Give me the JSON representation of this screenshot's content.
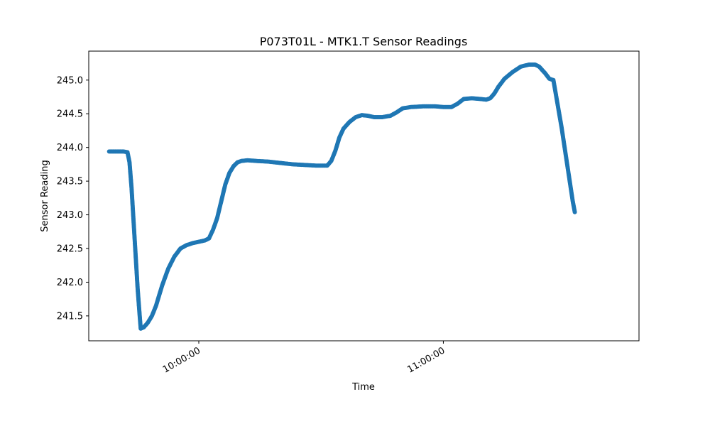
{
  "chart_data": {
    "type": "scatter",
    "title": "P073T01L - MTK1.T Sensor Readings",
    "xlabel": "Time",
    "ylabel": "Sensor Reading",
    "xlim": [
      "09:33:00",
      "11:48:00"
    ],
    "ylim": [
      241.13,
      245.43
    ],
    "x_ticks": [
      "10:00:00",
      "11:00:00"
    ],
    "y_ticks": [
      241.5,
      242.0,
      242.5,
      243.0,
      243.5,
      244.0,
      244.5,
      245.0
    ],
    "y_tick_labels": [
      "241.5",
      "242.0",
      "242.5",
      "243.0",
      "243.5",
      "244.0",
      "244.5",
      "245.0"
    ],
    "grid": false,
    "color": "#1f77b4",
    "series": [
      {
        "points": [
          [
            "09:38:00",
            243.94
          ],
          [
            "09:40:00",
            243.94
          ],
          [
            "09:41:30",
            243.94
          ],
          [
            "09:42:30",
            243.93
          ],
          [
            "09:43:00",
            243.78
          ],
          [
            "09:43:30",
            243.4
          ],
          [
            "09:44:00",
            242.9
          ],
          [
            "09:44:30",
            242.4
          ],
          [
            "09:45:00",
            241.9
          ],
          [
            "09:45:30",
            241.5
          ],
          [
            "09:45:45",
            241.31
          ],
          [
            "09:46:30",
            241.33
          ],
          [
            "09:47:30",
            241.4
          ],
          [
            "09:48:30",
            241.5
          ],
          [
            "09:49:30",
            241.65
          ],
          [
            "09:51:00",
            241.95
          ],
          [
            "09:52:30",
            242.2
          ],
          [
            "09:54:00",
            242.38
          ],
          [
            "09:55:30",
            242.5
          ],
          [
            "09:57:00",
            242.55
          ],
          [
            "09:58:30",
            242.58
          ],
          [
            "10:00:00",
            242.6
          ],
          [
            "10:01:30",
            242.62
          ],
          [
            "10:02:30",
            242.65
          ],
          [
            "10:03:30",
            242.78
          ],
          [
            "10:04:30",
            242.95
          ],
          [
            "10:05:30",
            243.2
          ],
          [
            "10:06:30",
            243.45
          ],
          [
            "10:07:30",
            243.62
          ],
          [
            "10:08:30",
            243.72
          ],
          [
            "10:09:30",
            243.78
          ],
          [
            "10:10:30",
            243.8
          ],
          [
            "10:12:00",
            243.81
          ],
          [
            "10:14:00",
            243.8
          ],
          [
            "10:17:00",
            243.79
          ],
          [
            "10:20:00",
            243.77
          ],
          [
            "10:23:00",
            243.75
          ],
          [
            "10:26:00",
            243.74
          ],
          [
            "10:29:00",
            243.73
          ],
          [
            "10:31:30",
            243.73
          ],
          [
            "10:32:30",
            243.8
          ],
          [
            "10:33:30",
            243.95
          ],
          [
            "10:34:30",
            244.15
          ],
          [
            "10:35:30",
            244.28
          ],
          [
            "10:37:00",
            244.38
          ],
          [
            "10:38:30",
            244.45
          ],
          [
            "10:40:00",
            244.48
          ],
          [
            "10:41:30",
            244.47
          ],
          [
            "10:43:00",
            244.45
          ],
          [
            "10:45:00",
            244.45
          ],
          [
            "10:47:00",
            244.47
          ],
          [
            "10:48:30",
            244.52
          ],
          [
            "10:50:00",
            244.58
          ],
          [
            "10:52:00",
            244.6
          ],
          [
            "10:55:00",
            244.61
          ],
          [
            "10:58:00",
            244.61
          ],
          [
            "11:00:00",
            244.6
          ],
          [
            "11:02:00",
            244.6
          ],
          [
            "11:03:30",
            244.65
          ],
          [
            "11:05:00",
            244.72
          ],
          [
            "11:07:00",
            244.73
          ],
          [
            "11:09:00",
            244.72
          ],
          [
            "11:10:30",
            244.71
          ],
          [
            "11:11:30",
            244.73
          ],
          [
            "11:12:30",
            244.8
          ],
          [
            "11:13:30",
            244.9
          ],
          [
            "11:15:00",
            245.02
          ],
          [
            "11:17:00",
            245.12
          ],
          [
            "11:19:00",
            245.2
          ],
          [
            "11:21:00",
            245.23
          ],
          [
            "11:22:30",
            245.23
          ],
          [
            "11:23:30",
            245.2
          ],
          [
            "11:25:00",
            245.1
          ],
          [
            "11:26:00",
            245.02
          ],
          [
            "11:27:00",
            245.0
          ],
          [
            "11:28:00",
            244.65
          ],
          [
            "11:29:00",
            244.3
          ],
          [
            "11:30:00",
            243.9
          ],
          [
            "11:31:00",
            243.5
          ],
          [
            "11:31:45",
            243.2
          ],
          [
            "11:32:15",
            243.04
          ]
        ]
      }
    ]
  }
}
